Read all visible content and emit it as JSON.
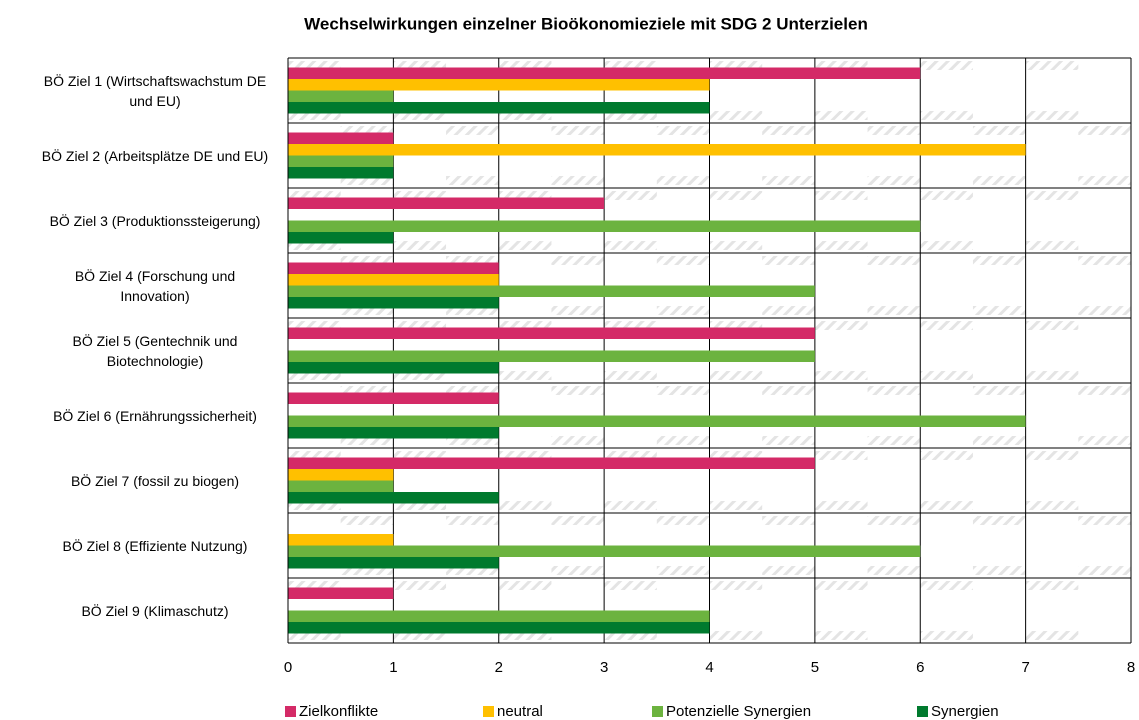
{
  "chart_data": {
    "type": "hbar",
    "title": "Wechselwirkungen einzelner Bioökonomieziele mit SDG 2 Unterzielen",
    "categories": [
      "BÖ Ziel 1 (Wirtschaftswachstum DE und EU)",
      "BÖ Ziel 2 (Arbeitsplätze DE und EU)",
      "BÖ Ziel 3 (Produktionssteigerung)",
      "BÖ Ziel 4 (Forschung und Innovation)",
      "BÖ Ziel 5 (Gentechnik und Biotechnologie)",
      "BÖ Ziel 6 (Ernährungssicherheit)",
      "BÖ Ziel 7 (fossil zu biogen)",
      "BÖ Ziel 8 (Effiziente Nutzung)",
      "BÖ Ziel 9 (Klimaschutz)"
    ],
    "series": [
      {
        "name": "Zielkonflikte",
        "color": "#d42a67",
        "values": [
          6,
          1,
          3,
          2,
          5,
          2,
          5,
          0,
          1
        ]
      },
      {
        "name": "neutral",
        "color": "#ffc000",
        "values": [
          4,
          7,
          0,
          2,
          0,
          0,
          1,
          1,
          0
        ]
      },
      {
        "name": "Potenzielle Synergien",
        "color": "#6cb33f",
        "values": [
          1,
          1,
          6,
          5,
          5,
          7,
          1,
          6,
          4
        ]
      },
      {
        "name": "Synergien",
        "color": "#007a2e",
        "values": [
          4,
          1,
          1,
          2,
          2,
          2,
          2,
          2,
          4
        ]
      }
    ],
    "xlim": [
      0,
      8
    ],
    "xticks": [
      0,
      1,
      2,
      3,
      4,
      5,
      6,
      7,
      8
    ],
    "grid": true,
    "legend": "bottom"
  }
}
